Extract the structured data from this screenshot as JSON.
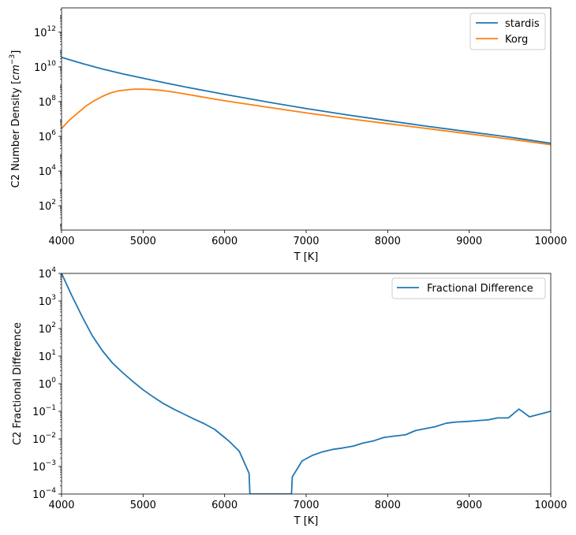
{
  "chart_data": [
    {
      "type": "line",
      "scale": "log-y",
      "xlabel": "T [K]",
      "ylabel_main": "C2 Number Density [",
      "ylabel_unit": "cm",
      "ylabel_exp": "−3",
      "ylabel_end": "]",
      "xlim": [
        4000,
        10000
      ],
      "ylim_log10": [
        0.6,
        13.4
      ],
      "xticks": [
        "4000",
        "5000",
        "6000",
        "7000",
        "8000",
        "9000",
        "10000"
      ],
      "yticks": [
        {
          "base": "10",
          "exp": "2",
          "log": 2
        },
        {
          "base": "10",
          "exp": "4",
          "log": 4
        },
        {
          "base": "10",
          "exp": "6",
          "log": 6
        },
        {
          "base": "10",
          "exp": "8",
          "log": 8
        },
        {
          "base": "10",
          "exp": "10",
          "log": 10
        },
        {
          "base": "10",
          "exp": "12",
          "log": 12
        }
      ],
      "legend_position": "top-right",
      "series": [
        {
          "name": "stardis",
          "color": "#1f77b4",
          "x": [
            4000,
            4250,
            4500,
            4750,
            5000,
            5250,
            5500,
            5750,
            6000,
            6500,
            7000,
            7500,
            8000,
            8500,
            9000,
            9500,
            9600,
            10000
          ],
          "log_y": [
            10.55,
            10.2,
            9.88,
            9.6,
            9.35,
            9.1,
            8.86,
            8.64,
            8.42,
            8.0,
            7.6,
            7.24,
            6.9,
            6.57,
            6.26,
            5.95,
            5.88,
            5.6
          ]
        },
        {
          "name": "Korg",
          "color": "#ff7f0e",
          "x": [
            4000,
            4100,
            4200,
            4300,
            4400,
            4500,
            4600,
            4700,
            4800,
            4900,
            5000,
            5100,
            5200,
            5300,
            5400,
            5500,
            5750,
            6000,
            6500,
            7000,
            7500,
            8000,
            8500,
            9000,
            9500,
            10000
          ],
          "log_y": [
            6.45,
            6.95,
            7.35,
            7.75,
            8.05,
            8.3,
            8.5,
            8.62,
            8.68,
            8.72,
            8.72,
            8.7,
            8.66,
            8.6,
            8.53,
            8.45,
            8.25,
            8.05,
            7.7,
            7.35,
            7.03,
            6.73,
            6.44,
            6.14,
            5.84,
            5.52
          ]
        }
      ]
    },
    {
      "type": "line",
      "scale": "log-y",
      "xlabel": "T [K]",
      "ylabel": "C2 Fractional Difference",
      "xlim": [
        4000,
        10000
      ],
      "ylim_log10": [
        -4,
        4
      ],
      "xticks": [
        "4000",
        "5000",
        "6000",
        "7000",
        "8000",
        "9000",
        "10000"
      ],
      "yticks": [
        {
          "base": "10",
          "exp": "−4",
          "log": -4
        },
        {
          "base": "10",
          "exp": "−3",
          "log": -3
        },
        {
          "base": "10",
          "exp": "−2",
          "log": -2
        },
        {
          "base": "10",
          "exp": "−1",
          "log": -1
        },
        {
          "base": "10",
          "exp": "0",
          "log": 0
        },
        {
          "base": "10",
          "exp": "1",
          "log": 1
        },
        {
          "base": "10",
          "exp": "2",
          "log": 2
        },
        {
          "base": "10",
          "exp": "3",
          "log": 3
        },
        {
          "base": "10",
          "exp": "4",
          "log": 4
        }
      ],
      "legend_position": "top-right",
      "series": [
        {
          "name": "Fractional Difference",
          "color": "#1f77b4",
          "x": [
            4000,
            4125,
            4250,
            4375,
            4500,
            4625,
            4750,
            4875,
            5000,
            5125,
            5250,
            5375,
            5500,
            5625,
            5750,
            5875,
            6000,
            6060,
            6180,
            6300,
            6310,
            6820,
            6830,
            6950,
            7075,
            7200,
            7330,
            7450,
            7580,
            7700,
            7830,
            7950,
            8080,
            8220,
            8340,
            8460,
            8580,
            8720,
            8840,
            8970,
            9100,
            9230,
            9350,
            9480,
            9610,
            9740,
            9870,
            10000
          ],
          "log_y": [
            4.0,
            3.2,
            2.45,
            1.75,
            1.2,
            0.75,
            0.4,
            0.08,
            -0.22,
            -0.48,
            -0.72,
            -0.92,
            -1.1,
            -1.28,
            -1.45,
            -1.65,
            -1.95,
            -2.1,
            -2.45,
            -3.25,
            -4.0,
            -4.0,
            -3.38,
            -2.8,
            -2.6,
            -2.47,
            -2.38,
            -2.33,
            -2.26,
            -2.15,
            -2.07,
            -1.95,
            -1.9,
            -1.85,
            -1.7,
            -1.63,
            -1.56,
            -1.43,
            -1.39,
            -1.37,
            -1.34,
            -1.31,
            -1.24,
            -1.24,
            -0.92,
            -1.2,
            -1.1,
            -1.0
          ]
        }
      ]
    }
  ]
}
